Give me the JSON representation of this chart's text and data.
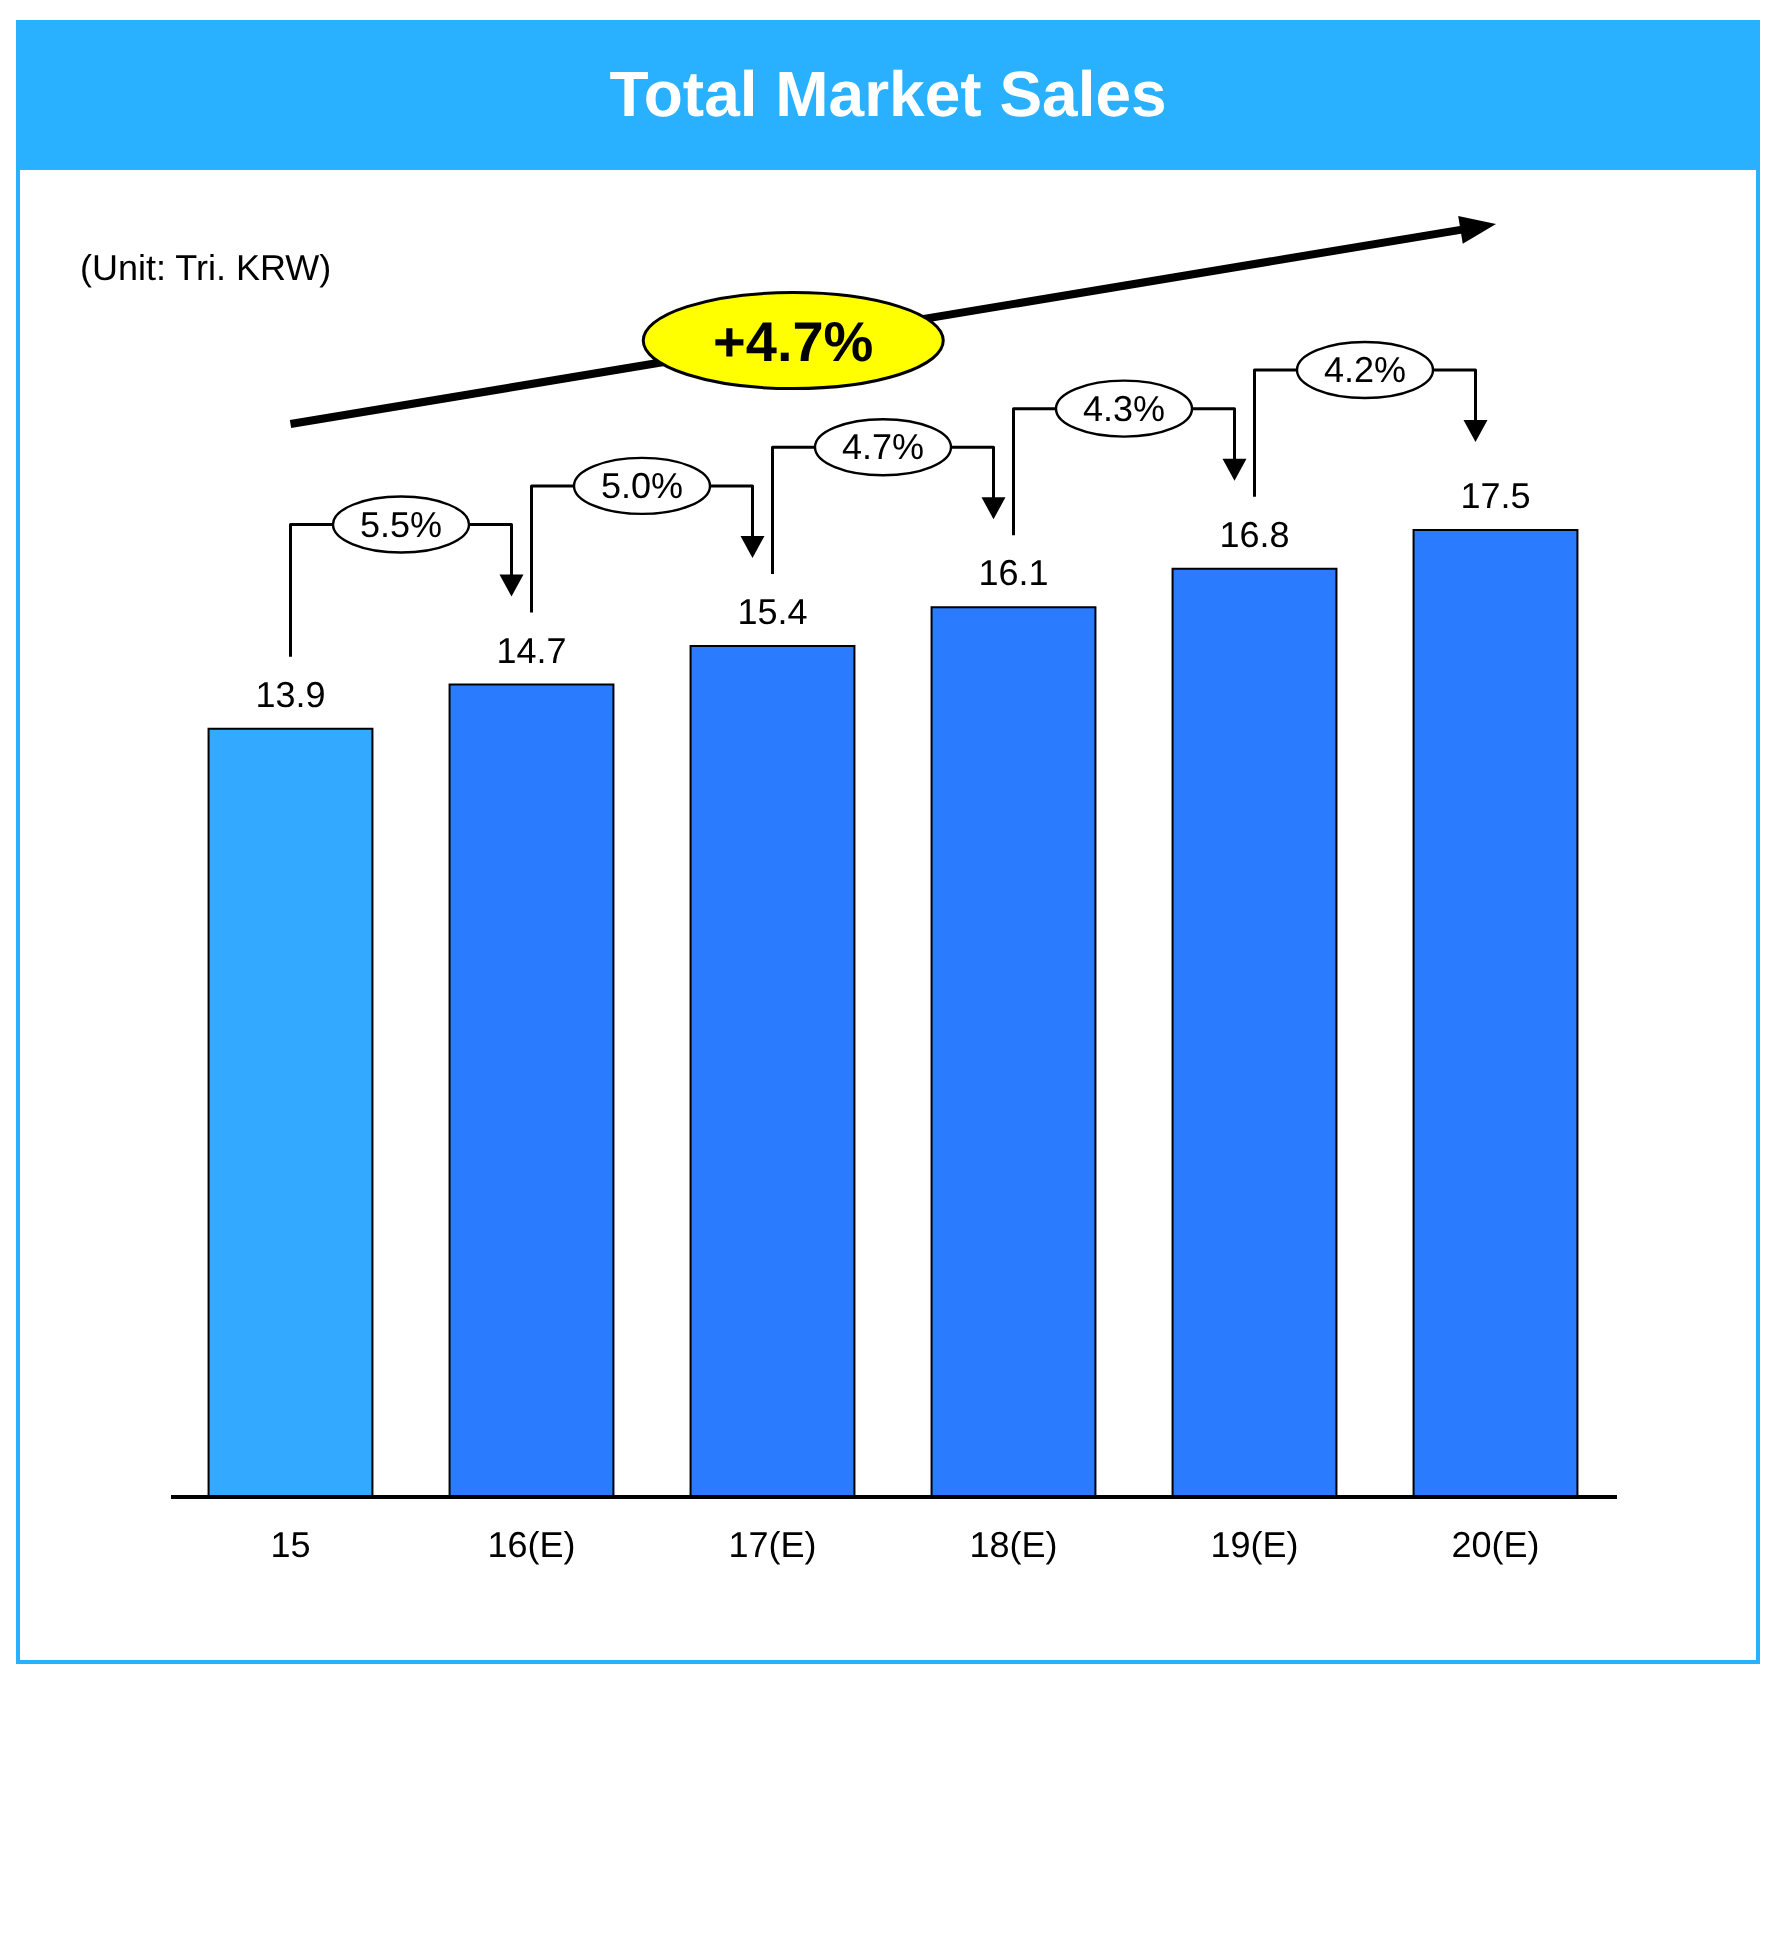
{
  "chart_data": {
    "type": "bar",
    "title": "Total Market Sales",
    "categories": [
      "15",
      "16(E)",
      "17(E)",
      "18(E)",
      "19(E)",
      "20(E)"
    ],
    "values": [
      13.9,
      14.7,
      15.4,
      16.1,
      16.8,
      17.5
    ],
    "colors": [
      "#33aaff",
      "#2b7bff",
      "#2b7bff",
      "#2b7bff",
      "#2b7bff",
      "#2b7bff"
    ],
    "data_labels": true,
    "grid": false,
    "annotations": [
      "(Unit: Tri. KRW)",
      "+4.7%",
      "5.5%",
      "5.0%",
      "4.7%",
      "4.3%",
      "4.2%"
    ]
  }
}
